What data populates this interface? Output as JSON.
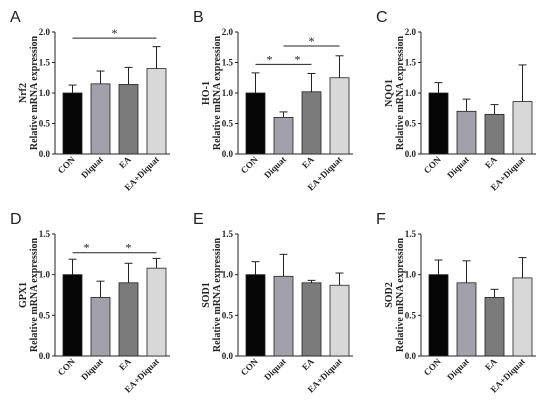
{
  "chart_data": [
    {
      "panel": "A",
      "type": "bar",
      "ylabel": "Nrf2",
      "ylabel_prefix": "Relative mRNA expression",
      "categories": [
        "CON",
        "Diquat",
        "EA",
        "EA+Diquat"
      ],
      "values": [
        1.0,
        1.15,
        1.14,
        1.4
      ],
      "errors": [
        0.13,
        0.21,
        0.28,
        0.36
      ],
      "ylim": [
        0,
        2.0
      ],
      "yticks": [
        "0.0",
        "0.5",
        "1.0",
        "1.5",
        "2.0"
      ],
      "ytick_values": [
        0,
        0.5,
        1.0,
        1.5,
        2.0
      ],
      "significance": [
        {
          "from": 0,
          "to": 3,
          "y": 1.9,
          "label": "*"
        }
      ]
    },
    {
      "panel": "B",
      "type": "bar",
      "ylabel": "HO-1",
      "ylabel_prefix": "Relative mRNA expression",
      "categories": [
        "CON",
        "Diquat",
        "EA",
        "EA+Diquat"
      ],
      "values": [
        1.0,
        0.6,
        1.02,
        1.25
      ],
      "errors": [
        0.33,
        0.09,
        0.3,
        0.36
      ],
      "ylim": [
        0,
        2.0
      ],
      "yticks": [
        "0.0",
        "0.5",
        "1.0",
        "1.5",
        "2.0"
      ],
      "ytick_values": [
        0,
        0.5,
        1.0,
        1.5,
        2.0
      ],
      "significance": [
        {
          "from": 0,
          "to": 1,
          "y": 1.47,
          "label": "*"
        },
        {
          "from": 1,
          "to": 2,
          "y": 1.47,
          "label": "*"
        },
        {
          "from": 1,
          "to": 3,
          "y": 1.77,
          "label": "*"
        }
      ]
    },
    {
      "panel": "C",
      "type": "bar",
      "ylabel": "NQO1",
      "ylabel_prefix": "Relative mRNA expression",
      "categories": [
        "CON",
        "Diquat",
        "EA",
        "EA+Diquat"
      ],
      "values": [
        1.0,
        0.7,
        0.65,
        0.86
      ],
      "errors": [
        0.17,
        0.2,
        0.16,
        0.6
      ],
      "ylim": [
        0,
        2.0
      ],
      "yticks": [
        "0.0",
        "0.5",
        "1.0",
        "1.5",
        "2.0"
      ],
      "ytick_values": [
        0,
        0.5,
        1.0,
        1.5,
        2.0
      ],
      "significance": []
    },
    {
      "panel": "D",
      "type": "bar",
      "ylabel": "GPX1",
      "ylabel_prefix": "Relative mRNA expression",
      "categories": [
        "CON",
        "Diquat",
        "EA",
        "EA+Diquat"
      ],
      "values": [
        1.0,
        0.72,
        0.9,
        1.08
      ],
      "errors": [
        0.19,
        0.2,
        0.24,
        0.12
      ],
      "ylim": [
        0,
        1.5
      ],
      "yticks": [
        "0.0",
        "0.5",
        "1.0",
        "1.5"
      ],
      "ytick_values": [
        0,
        0.5,
        1.0,
        1.5
      ],
      "significance": [
        {
          "from": 0,
          "to": 1,
          "y": 1.27,
          "label": "*"
        },
        {
          "from": 1,
          "to": 3,
          "y": 1.27,
          "label": "*"
        }
      ]
    },
    {
      "panel": "E",
      "type": "bar",
      "ylabel": "SOD1",
      "ylabel_prefix": "Relative mRNA expression",
      "categories": [
        "CON",
        "Diquat",
        "EA",
        "EA+Diquat"
      ],
      "values": [
        1.0,
        0.98,
        0.9,
        0.87
      ],
      "errors": [
        0.16,
        0.27,
        0.03,
        0.15
      ],
      "ylim": [
        0,
        1.5
      ],
      "yticks": [
        "0.0",
        "0.5",
        "1.0",
        "1.5"
      ],
      "ytick_values": [
        0,
        0.5,
        1.0,
        1.5
      ],
      "significance": []
    },
    {
      "panel": "F",
      "type": "bar",
      "ylabel": "SOD2",
      "ylabel_prefix": "Relative mRNA expression",
      "categories": [
        "CON",
        "Diquat",
        "EA",
        "EA+Diquat"
      ],
      "values": [
        1.0,
        0.9,
        0.72,
        0.96
      ],
      "errors": [
        0.18,
        0.27,
        0.1,
        0.25
      ],
      "ylim": [
        0,
        1.5
      ],
      "yticks": [
        "0.0",
        "0.5",
        "1.0",
        "1.5"
      ],
      "ytick_values": [
        0,
        0.5,
        1.0,
        1.5
      ],
      "significance": []
    }
  ],
  "colors": {
    "bars": [
      "#050505",
      "#a2a1ab",
      "#7b7b7b",
      "#d8d8d8"
    ],
    "axis": "#222222",
    "text": "#222222"
  }
}
